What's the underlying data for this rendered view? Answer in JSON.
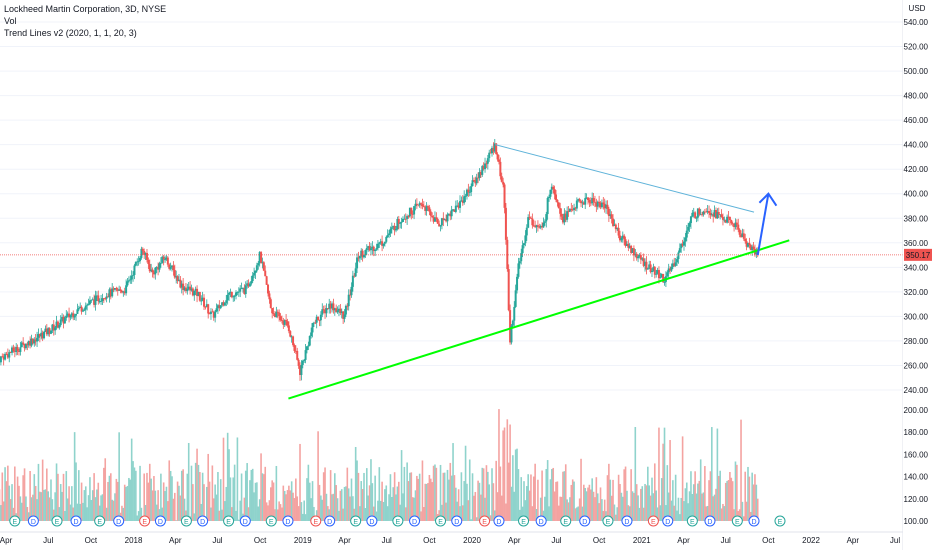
{
  "legend": {
    "title": "Lockheed Martin Corporation, 3D, NYSE",
    "vol": "Vol",
    "trend": "Trend Lines v2 (2020, 1, 1, 20, 3)"
  },
  "colors": {
    "up": "#26a69a",
    "down": "#ef5350",
    "vol_up": "#8fd3cc",
    "vol_down": "#f4a3a1",
    "support_line": "#00ff00",
    "resistance_line": "#5fb3d9",
    "arrow": "#2962ff",
    "price_line": "#ef5350",
    "price_badge": "#ef5350"
  },
  "chart_data": {
    "type": "candlestick",
    "price_axis": {
      "currency": "USD",
      "ticks": [
        540.0,
        520.0,
        500.0,
        480.0,
        460.0,
        440.0,
        420.0,
        400.0,
        380.0,
        360.0,
        340.0,
        320.0,
        300.0,
        280.0,
        260.0,
        240.0
      ],
      "last_price": "350.17"
    },
    "volume_axis": {
      "ticks": [
        200.0,
        180.0,
        160.0,
        140.0,
        120.0,
        100.0
      ]
    },
    "time_axis": [
      "Apr",
      "Jul",
      "Oct",
      "2018",
      "Apr",
      "Jul",
      "Oct",
      "2019",
      "Apr",
      "Jul",
      "Oct",
      "2020",
      "Apr",
      "Jul",
      "Oct",
      "2021",
      "Apr",
      "Jul",
      "Oct",
      "2022",
      "Apr",
      "Jul"
    ],
    "time_axis_dates": [
      "2017-04",
      "2017-07",
      "2017-10",
      "2018-01",
      "2018-04",
      "2018-07",
      "2018-10",
      "2019-01",
      "2019-04",
      "2019-07",
      "2019-10",
      "2020-01",
      "2020-04",
      "2020-07",
      "2020-10",
      "2021-01",
      "2021-04",
      "2021-07",
      "2021-10",
      "2022-01",
      "2022-04",
      "2022-07"
    ],
    "price_path": [
      [
        "2017-03-15",
        265
      ],
      [
        "2017-05-01",
        275
      ],
      [
        "2017-07-01",
        288
      ],
      [
        "2017-09-01",
        305
      ],
      [
        "2017-11-01",
        318
      ],
      [
        "2017-12-15",
        322
      ],
      [
        "2018-01-20",
        355
      ],
      [
        "2018-02-10",
        335
      ],
      [
        "2018-03-10",
        348
      ],
      [
        "2018-04-15",
        325
      ],
      [
        "2018-05-20",
        318
      ],
      [
        "2018-06-20",
        300
      ],
      [
        "2018-07-25",
        318
      ],
      [
        "2018-09-01",
        322
      ],
      [
        "2018-10-01",
        350
      ],
      [
        "2018-10-25",
        305
      ],
      [
        "2018-12-01",
        292
      ],
      [
        "2018-12-26",
        255
      ],
      [
        "2019-01-25",
        295
      ],
      [
        "2019-03-01",
        310
      ],
      [
        "2019-04-01",
        300
      ],
      [
        "2019-05-01",
        350
      ],
      [
        "2019-06-20",
        360
      ],
      [
        "2019-08-01",
        380
      ],
      [
        "2019-09-15",
        392
      ],
      [
        "2019-10-20",
        375
      ],
      [
        "2019-12-01",
        390
      ],
      [
        "2020-01-15",
        415
      ],
      [
        "2020-02-20",
        440
      ],
      [
        "2020-03-10",
        400
      ],
      [
        "2020-03-23",
        280
      ],
      [
        "2020-04-10",
        340
      ],
      [
        "2020-05-01",
        380
      ],
      [
        "2020-06-01",
        370
      ],
      [
        "2020-06-20",
        410
      ],
      [
        "2020-07-15",
        380
      ],
      [
        "2020-08-15",
        392
      ],
      [
        "2020-09-10",
        395
      ],
      [
        "2020-10-15",
        390
      ],
      [
        "2020-11-15",
        365
      ],
      [
        "2020-12-20",
        350
      ],
      [
        "2021-01-15",
        340
      ],
      [
        "2021-02-20",
        330
      ],
      [
        "2021-03-20",
        350
      ],
      [
        "2021-04-20",
        382
      ],
      [
        "2021-05-20",
        388
      ],
      [
        "2021-06-25",
        380
      ],
      [
        "2021-07-20",
        375
      ],
      [
        "2021-08-15",
        360
      ],
      [
        "2021-09-08",
        350.17
      ]
    ],
    "volume_scale_max": 210,
    "events": {
      "earnings_dates": [
        "2017-04-20",
        "2017-07-20",
        "2017-10-20",
        "2018-01-25",
        "2018-04-25",
        "2018-07-25",
        "2018-10-25",
        "2019-01-29",
        "2019-04-25",
        "2019-07-25",
        "2019-10-25",
        "2020-01-28",
        "2020-04-21",
        "2020-07-21",
        "2020-10-20",
        "2021-01-26",
        "2021-04-20",
        "2021-07-26",
        "2021-10-26"
      ],
      "dividend_dates": [
        "2017-03-01",
        "2017-05-30",
        "2017-08-30",
        "2017-11-30",
        "2018-02-28",
        "2018-05-30",
        "2018-08-30",
        "2018-11-30",
        "2019-02-28",
        "2019-05-30",
        "2019-08-30",
        "2019-11-29",
        "2020-02-28",
        "2020-05-29",
        "2020-08-31",
        "2020-11-30",
        "2021-02-26",
        "2021-05-28",
        "2021-08-31"
      ],
      "split_like_dates": [
        "2017-01-15",
        "2017-11-15",
        "2018-12-10",
        "2021-03-10",
        "2021-08-15"
      ]
    },
    "drawings": {
      "resistance": [
        [
          "2020-02-20",
          440
        ],
        [
          "2021-08-31",
          385
        ]
      ],
      "support": [
        [
          "2018-12-01",
          233
        ],
        [
          "2021-11-15",
          362
        ]
      ],
      "arrow": [
        [
          "2021-09-08",
          350
        ],
        [
          "2021-10-01",
          400
        ]
      ]
    }
  }
}
